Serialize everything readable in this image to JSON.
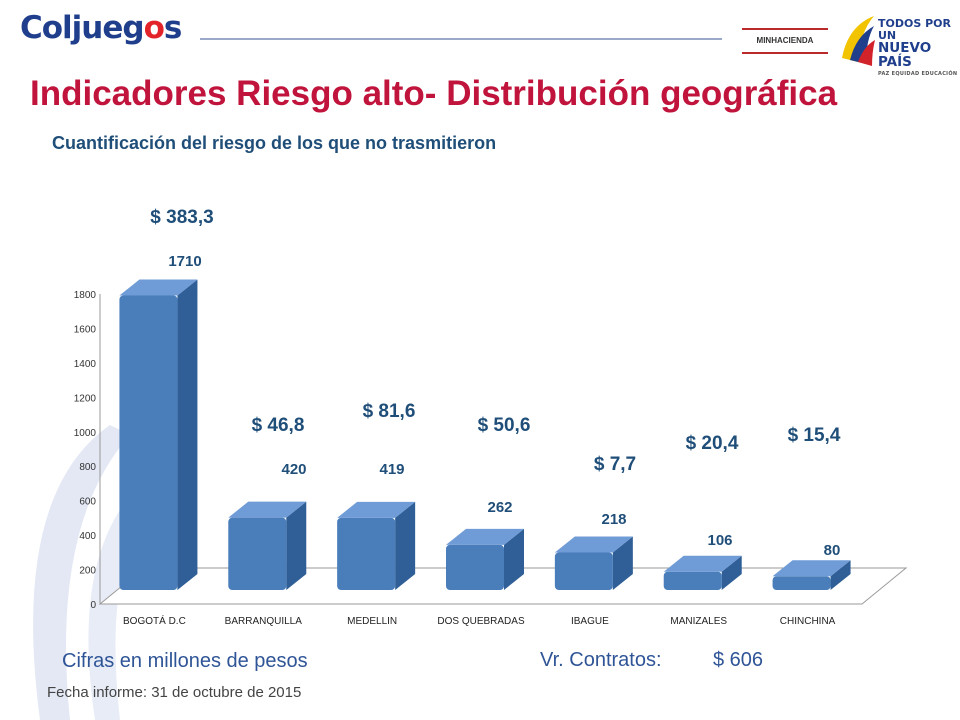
{
  "brand": {
    "logo_text": "Coljueg",
    "logo_flame": "o",
    "logo_tail": "s",
    "ministry_logo_text": "MINHACIENDA",
    "gov_logo_lines": [
      "TODOS POR UN",
      "NUEVO PAÍS",
      "PAZ  EQUIDAD  EDUCACIÓN"
    ]
  },
  "title": "Indicadores Riesgo alto- Distribución geográfica",
  "subtitle": "Cuantificación del riesgo de los que no trasmitieron",
  "chart_data": {
    "type": "bar",
    "categories": [
      "BOGOTÁ D.C",
      "BARRANQUILLA",
      "MEDELLIN",
      "DOS QUEBRADAS",
      "IBAGUE",
      "MANIZALES",
      "CHINCHINA"
    ],
    "values": [
      1710,
      420,
      419,
      262,
      218,
      106,
      80
    ],
    "amount_labels": [
      "$ 383,3",
      "$ 46,8",
      "$ 81,6",
      "$ 50,6",
      "$ 7,7",
      "$ 20,4",
      "$ 15,4"
    ],
    "yticks": [
      "0",
      "200",
      "400",
      "600",
      "800",
      "1000",
      "1200",
      "1400",
      "1600",
      "1800"
    ],
    "ylim": [
      0,
      1800
    ],
    "grid": false,
    "style": "3d-column",
    "colors": {
      "bar_front": "#4a7ebb",
      "bar_side": "#2f5f96",
      "bar_top": "#6f9bd6",
      "value_label": "#1f4e79"
    }
  },
  "notes": {
    "units": "Cifras en millones de pesos",
    "contracts_label": "Vr. Contratos:",
    "contracts_value": "$ 606"
  },
  "report_date": "Fecha informe: 31 de octubre de 2015"
}
